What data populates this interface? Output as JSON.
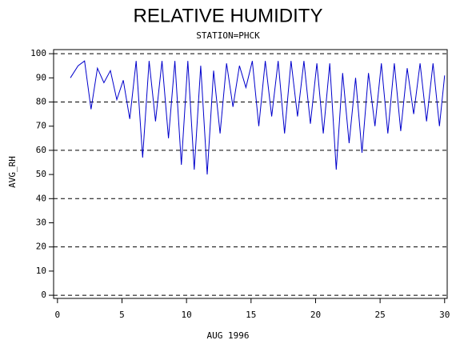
{
  "chart_data": {
    "type": "line",
    "title": "RELATIVE HUMIDITY",
    "subtitle": "STATION=PHCK",
    "x_label": "AUG 1996",
    "y_label": "AVG_RH",
    "x": [
      1.0,
      1.6,
      2.1,
      2.6,
      3.1,
      3.6,
      4.1,
      4.6,
      5.1,
      5.6,
      6.1,
      6.6,
      7.1,
      7.6,
      8.1,
      8.6,
      9.1,
      9.6,
      10.1,
      10.6,
      11.1,
      11.6,
      12.1,
      12.6,
      13.1,
      13.6,
      14.1,
      14.6,
      15.1,
      15.6,
      16.1,
      16.6,
      17.1,
      17.6,
      18.1,
      18.6,
      19.1,
      19.6,
      20.1,
      20.6,
      21.1,
      21.6,
      22.1,
      22.6,
      23.1,
      23.6,
      24.1,
      24.6,
      25.1,
      25.6,
      26.1,
      26.6,
      27.1,
      27.6,
      28.1,
      28.6,
      29.1,
      29.6,
      30.0
    ],
    "series": [
      {
        "name": "AVG_RH",
        "color": "#0000cc",
        "values": [
          90,
          95,
          97,
          77,
          94,
          88,
          93,
          81,
          89,
          73,
          97,
          57,
          97,
          72,
          97,
          65,
          97,
          54,
          97,
          52,
          95,
          50,
          93,
          67,
          96,
          78,
          95,
          86,
          97,
          70,
          97,
          74,
          97,
          67,
          97,
          74,
          97,
          71,
          96,
          67,
          96,
          52,
          92,
          63,
          90,
          59,
          92,
          70,
          96,
          67,
          96,
          68,
          94,
          75,
          96,
          72,
          96,
          70,
          91
        ]
      }
    ],
    "xlim": [
      -0.3,
      30.2
    ],
    "ylim": [
      -1.3,
      101.7
    ],
    "xticks": [
      0,
      5,
      10,
      15,
      20,
      25,
      30
    ],
    "yticks": [
      0,
      10,
      20,
      30,
      40,
      50,
      60,
      70,
      80,
      90,
      100
    ],
    "grid_lines": [
      0,
      20,
      40,
      60,
      80,
      100
    ]
  }
}
